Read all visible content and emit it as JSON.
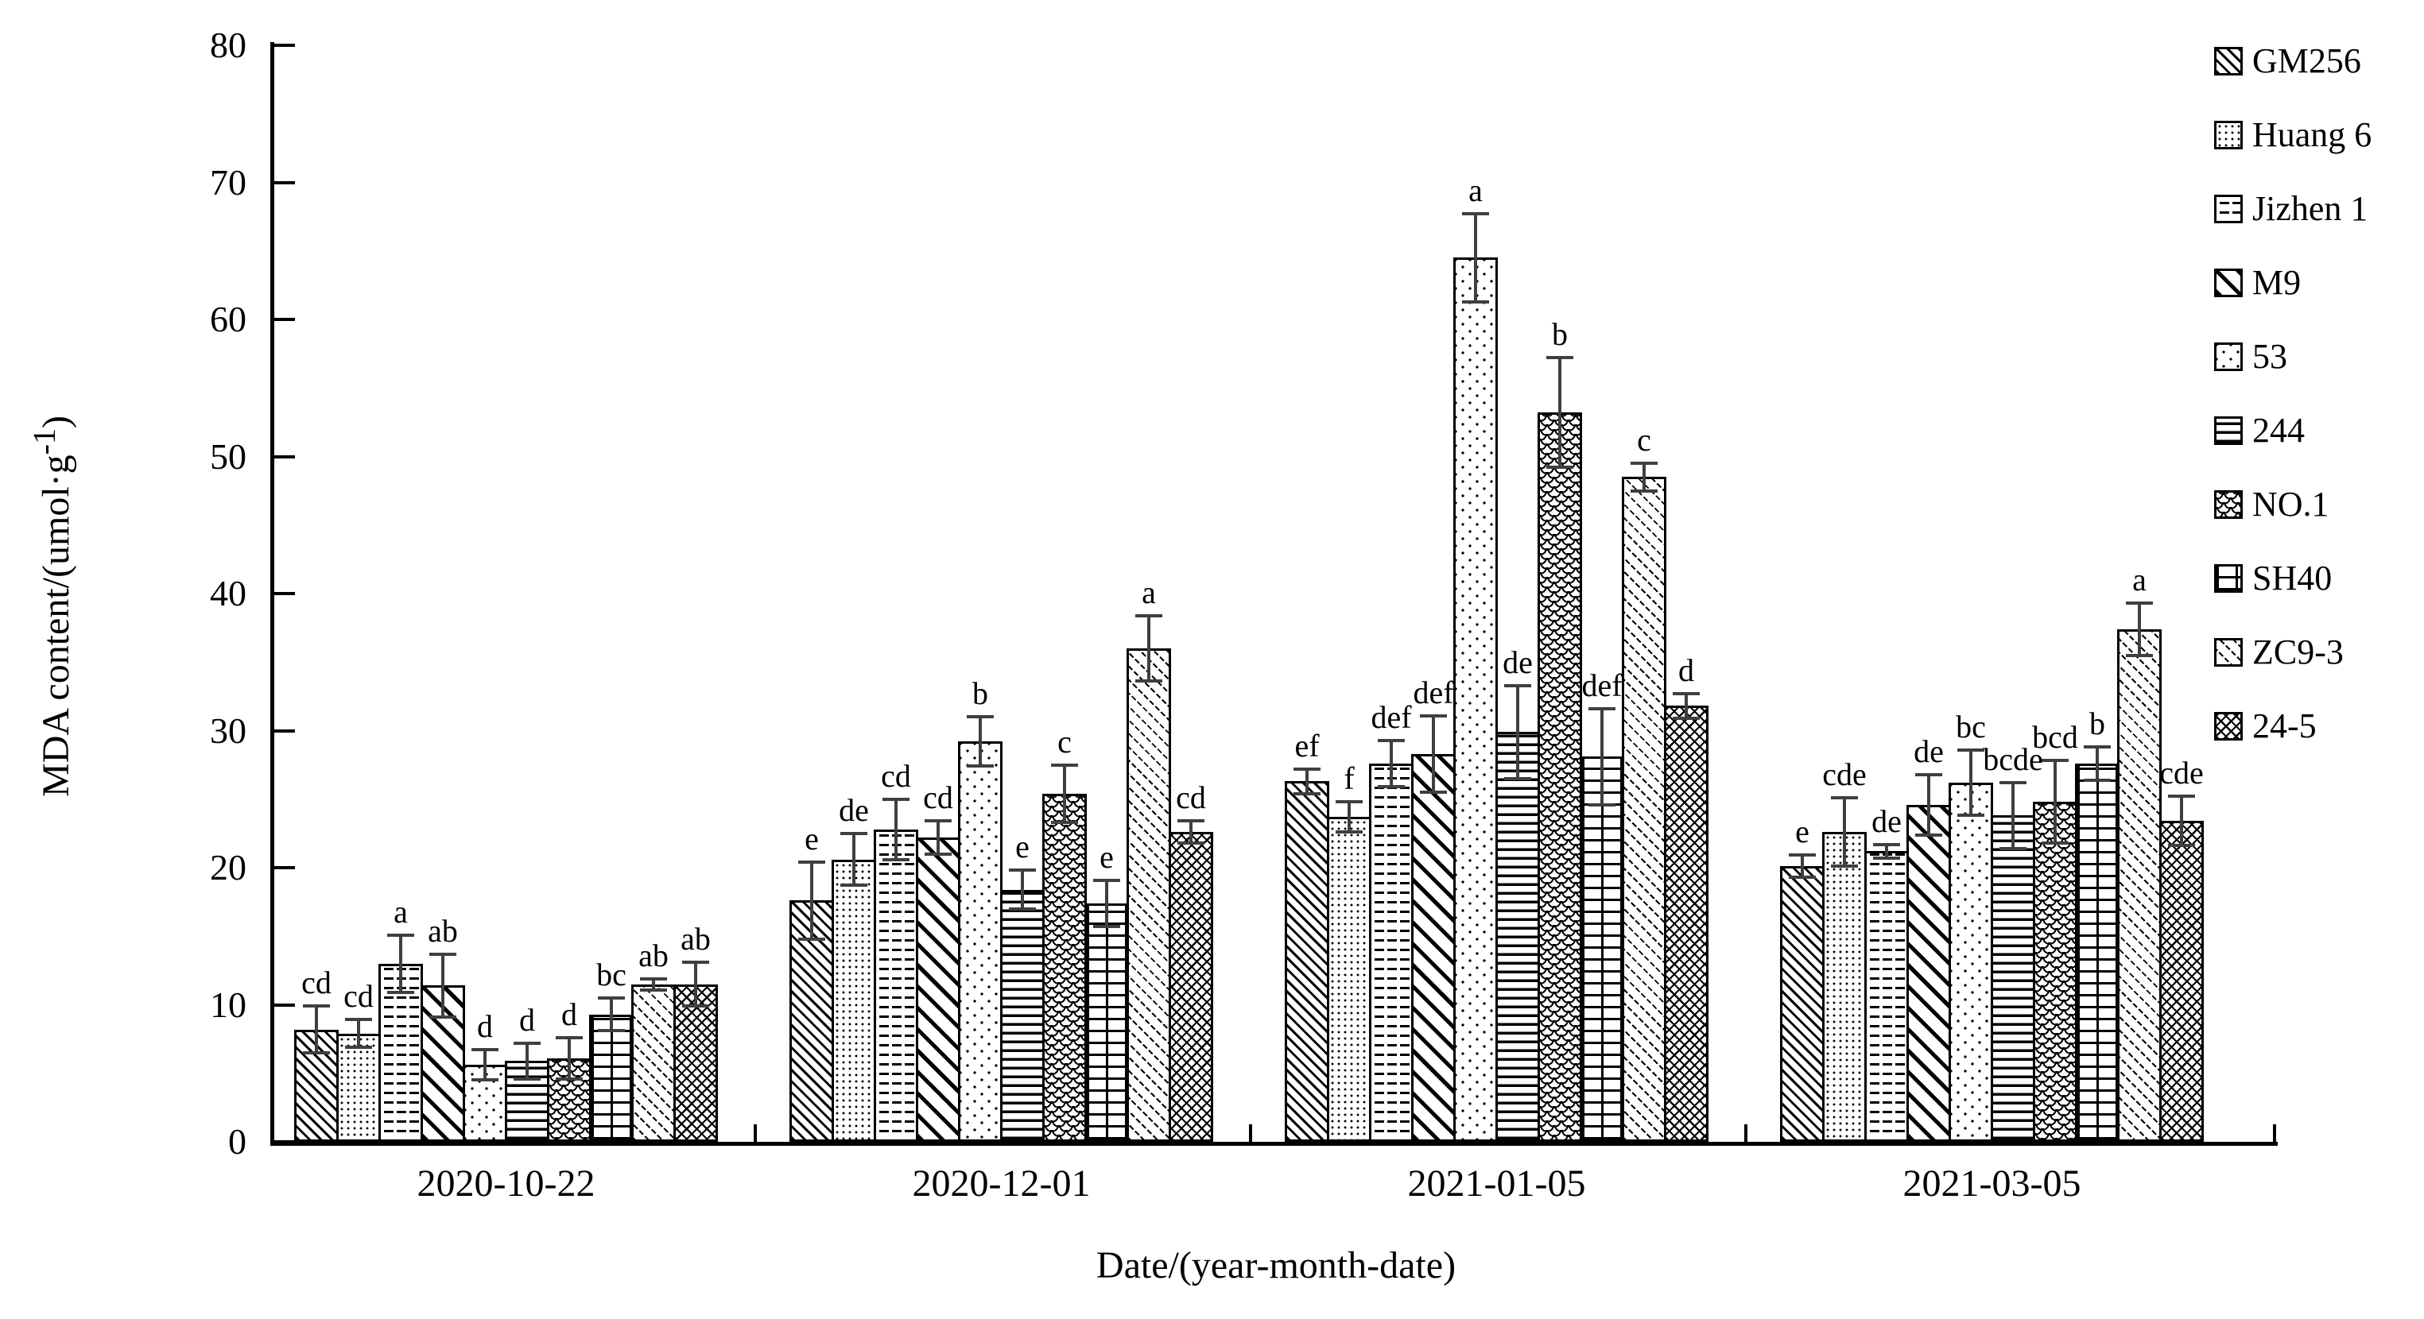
{
  "chart_data": {
    "type": "bar",
    "title": "",
    "xlabel": "Date/(year-month-date)",
    "ylabel": "MDA content/(umol·g",
    "ylabel_sup": "-1",
    "ylabel_end": ")",
    "ylim": [
      0,
      80
    ],
    "ytick_step": 10,
    "grid": false,
    "legend_position": "upper right",
    "error_bars": true,
    "bar_fill": "white-with-black-hatch-patterns",
    "accent_color": "#000000",
    "error_bar_color": "#3f3f3f",
    "categories": [
      "2020-10-22",
      "2020-12-01",
      "2021-01-05",
      "2021-03-05"
    ],
    "series": [
      {
        "name": "GM256",
        "pattern": "diagonal-hatch-dense",
        "values": [
          8.2,
          17.6,
          26.3,
          20.1
        ],
        "errors": [
          1.7,
          2.8,
          0.9,
          0.8
        ],
        "letters": [
          "cd",
          "e",
          "ef",
          "e"
        ]
      },
      {
        "name": "Huang 6",
        "pattern": "fine-dots",
        "values": [
          7.9,
          20.6,
          23.7,
          22.6
        ],
        "errors": [
          1.0,
          1.9,
          1.1,
          2.5
        ],
        "letters": [
          "cd",
          "de",
          "f",
          "cde"
        ]
      },
      {
        "name": "Jizhen 1",
        "pattern": "horizontal-dashes",
        "values": [
          13.0,
          22.8,
          27.6,
          21.2
        ],
        "errors": [
          2.1,
          2.2,
          1.7,
          0.5
        ],
        "letters": [
          "a",
          "cd",
          "def",
          "de"
        ]
      },
      {
        "name": "M9",
        "pattern": "diagonal-hatch-wide",
        "values": [
          11.4,
          22.2,
          28.3,
          24.6
        ],
        "errors": [
          2.3,
          1.2,
          2.8,
          2.2
        ],
        "letters": [
          "ab",
          "cd",
          "def",
          "de"
        ]
      },
      {
        "name": "53",
        "pattern": "sparse-dots",
        "values": [
          5.6,
          29.2,
          64.5,
          26.2
        ],
        "errors": [
          1.1,
          1.8,
          3.2,
          2.4
        ],
        "letters": [
          "d",
          "b",
          "a",
          "bc"
        ]
      },
      {
        "name": "244",
        "pattern": "horizontal-lines",
        "values": [
          5.9,
          18.4,
          29.9,
          23.8
        ],
        "errors": [
          1.3,
          1.4,
          3.4,
          2.4
        ],
        "letters": [
          "d",
          "e",
          "de",
          "bcde"
        ]
      },
      {
        "name": "NO.1",
        "pattern": "fish-scale",
        "values": [
          6.1,
          25.4,
          53.2,
          24.8
        ],
        "errors": [
          1.5,
          2.1,
          4.0,
          3.0
        ],
        "letters": [
          "d",
          "c",
          "b",
          "bcd"
        ]
      },
      {
        "name": "SH40",
        "pattern": "brick",
        "values": [
          9.3,
          17.4,
          28.1,
          27.6
        ],
        "errors": [
          1.2,
          1.7,
          3.5,
          1.2
        ],
        "letters": [
          "bc",
          "e",
          "def",
          "b"
        ]
      },
      {
        "name": "ZC9-3",
        "pattern": "diagonal-light-dashed",
        "values": [
          11.5,
          36.0,
          48.5,
          37.4
        ],
        "errors": [
          0.4,
          2.4,
          1.0,
          1.9
        ],
        "letters": [
          "ab",
          "a",
          "c",
          "a"
        ]
      },
      {
        "name": "24-5",
        "pattern": "crosshatch",
        "values": [
          11.5,
          22.6,
          31.8,
          23.4
        ],
        "errors": [
          1.6,
          0.8,
          0.9,
          1.8
        ],
        "letters": [
          "ab",
          "cd",
          "d",
          "cde"
        ]
      }
    ]
  }
}
